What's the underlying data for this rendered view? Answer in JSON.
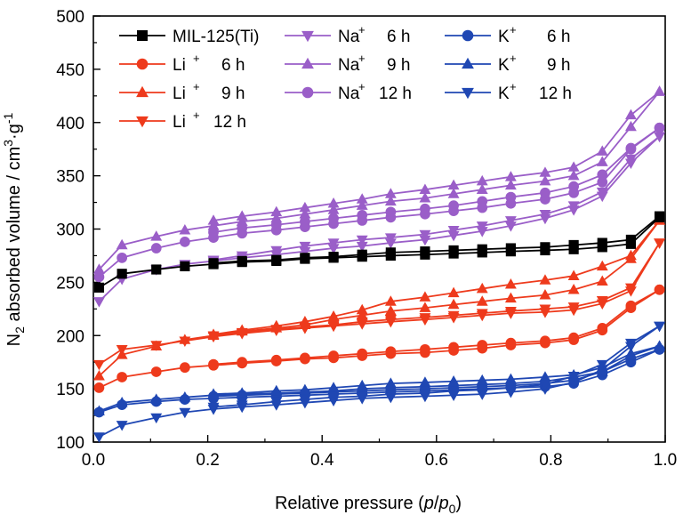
{
  "chart_data": {
    "type": "line",
    "xlabel": "Relative pressure (p/p0)",
    "xlabel_parts": {
      "prefix": "Relative pressure (",
      "p": "p",
      "slash": "/",
      "p0": "p",
      "sub": "0",
      "suffix": ")"
    },
    "ylabel": "N2 absorbed volume / cm3·g-1",
    "ylabel_parts": {
      "n": "N",
      "n_sub": "2",
      "mid": " absorbed volume / cm",
      "exp3": "3",
      "dot": "·g",
      "exp": "-1"
    },
    "xlim": [
      0,
      1.0
    ],
    "ylim": [
      100,
      500
    ],
    "xticks": [
      "0.0",
      "0.2",
      "0.4",
      "0.6",
      "0.8",
      "1.0"
    ],
    "yticks": [
      "100",
      "150",
      "200",
      "250",
      "300",
      "350",
      "400",
      "450",
      "500"
    ],
    "grid": false,
    "legend_position": "top",
    "colors": {
      "black": "#000000",
      "red": "#ee3a1c",
      "purple": "#9a5ec8",
      "blue": "#1f47b3"
    },
    "x": [
      0.01,
      0.05,
      0.11,
      0.16,
      0.21,
      0.26,
      0.32,
      0.37,
      0.42,
      0.47,
      0.52,
      0.58,
      0.63,
      0.68,
      0.73,
      0.79,
      0.84,
      0.89,
      0.94,
      0.99
    ],
    "series": [
      {
        "name": "MIL-125(Ti)",
        "ion": "",
        "time": "",
        "color": "#000000",
        "marker": "square",
        "adsorption": [
          245,
          258,
          262,
          265,
          267,
          269,
          270,
          272,
          273,
          274,
          275,
          276,
          277,
          278,
          279,
          280,
          281,
          283,
          286,
          311
        ],
        "desorption": [
          null,
          null,
          null,
          null,
          268,
          270,
          271,
          273,
          274,
          276,
          278,
          279,
          280,
          281,
          282,
          283,
          285,
          287,
          290,
          312
        ]
      },
      {
        "name": "Li+ 6 h",
        "ion": "Li",
        "time": "6 h",
        "color": "#ee3a1c",
        "marker": "circle",
        "adsorption": [
          151,
          161,
          166,
          170,
          172,
          174,
          176,
          178,
          179,
          181,
          183,
          184,
          186,
          188,
          191,
          193,
          196,
          205,
          226,
          243
        ],
        "desorption": [
          null,
          null,
          null,
          null,
          173,
          175,
          177,
          179,
          181,
          183,
          185,
          187,
          189,
          191,
          193,
          195,
          198,
          207,
          228,
          243
        ]
      },
      {
        "name": "Li+ 9 h",
        "ion": "Li",
        "time": "9 h",
        "color": "#ee3a1c",
        "marker": "triangle-up",
        "adsorption": [
          162,
          182,
          190,
          196,
          200,
          204,
          207,
          210,
          215,
          219,
          223,
          226,
          229,
          232,
          235,
          238,
          243,
          251,
          272,
          308
        ],
        "desorption": [
          null,
          null,
          null,
          null,
          201,
          205,
          209,
          213,
          218,
          224,
          232,
          236,
          240,
          244,
          248,
          252,
          256,
          265,
          275,
          308
        ]
      },
      {
        "name": "Li+ 12 h",
        "ion": "Li",
        "time": "12 h",
        "color": "#ee3a1c",
        "marker": "triangle-down",
        "adsorption": [
          173,
          187,
          191,
          195,
          199,
          202,
          205,
          207,
          209,
          211,
          213,
          215,
          217,
          219,
          221,
          222,
          224,
          230,
          242,
          287
        ],
        "desorption": [
          null,
          null,
          null,
          null,
          200,
          203,
          206,
          208,
          210,
          213,
          215,
          217,
          219,
          221,
          223,
          225,
          227,
          233,
          245,
          287
        ]
      },
      {
        "name": "Na+ 6 h",
        "ion": "Na",
        "time": "6 h",
        "color": "#9a5ec8",
        "marker": "triangle-down",
        "adsorption": [
          232,
          253,
          262,
          267,
          270,
          273,
          276,
          279,
          282,
          284,
          287,
          290,
          294,
          298,
          303,
          310,
          318,
          331,
          362,
          387
        ],
        "desorption": [
          null,
          null,
          null,
          null,
          271,
          275,
          280,
          284,
          287,
          290,
          292,
          295,
          299,
          303,
          308,
          314,
          322,
          335,
          366,
          387
        ]
      },
      {
        "name": "Na+ 9 h",
        "ion": "Na",
        "time": "9 h",
        "color": "#9a5ec8",
        "marker": "triangle-up",
        "adsorption": [
          262,
          285,
          293,
          299,
          303,
          307,
          310,
          314,
          318,
          322,
          326,
          329,
          333,
          337,
          341,
          345,
          350,
          363,
          396,
          429
        ],
        "desorption": [
          null,
          null,
          null,
          null,
          308,
          312,
          316,
          320,
          324,
          328,
          333,
          337,
          341,
          345,
          349,
          353,
          358,
          373,
          407,
          429
        ]
      },
      {
        "name": "Na+ 12 h",
        "ion": "Na",
        "time": "12 h",
        "color": "#9a5ec8",
        "marker": "circle",
        "adsorption": [
          255,
          273,
          282,
          288,
          292,
          296,
          299,
          302,
          305,
          308,
          311,
          314,
          317,
          320,
          324,
          328,
          334,
          344,
          375,
          395
        ],
        "desorption": [
          null,
          null,
          null,
          null,
          297,
          301,
          304,
          307,
          310,
          313,
          316,
          319,
          322,
          326,
          330,
          334,
          340,
          351,
          376,
          395
        ]
      },
      {
        "name": "K+ 6 h",
        "ion": "K",
        "time": "6 h",
        "color": "#1f47b3",
        "marker": "circle",
        "adsorption": [
          128,
          135,
          138,
          140,
          141,
          142,
          143,
          144,
          145,
          146,
          147,
          148,
          149,
          150,
          151,
          152,
          155,
          163,
          175,
          187
        ],
        "desorption": [
          null,
          null,
          null,
          null,
          143,
          144,
          145,
          146,
          147,
          148,
          149,
          150,
          151,
          152,
          153,
          155,
          158,
          166,
          178,
          187
        ]
      },
      {
        "name": "K+ 9 h",
        "ion": "K",
        "time": "9 h",
        "color": "#1f47b3",
        "marker": "triangle-up",
        "adsorption": [
          129,
          137,
          140,
          142,
          144,
          145,
          146,
          147,
          148,
          150,
          151,
          152,
          153,
          154,
          155,
          157,
          161,
          166,
          181,
          190
        ],
        "desorption": [
          null,
          null,
          null,
          null,
          145,
          146,
          148,
          149,
          151,
          153,
          155,
          156,
          157,
          158,
          159,
          161,
          163,
          170,
          183,
          190
        ]
      },
      {
        "name": "K+ 12 h",
        "ion": "K",
        "time": "12 h",
        "color": "#1f47b3",
        "marker": "triangle-down",
        "adsorption": [
          105,
          116,
          123,
          128,
          131,
          133,
          135,
          137,
          139,
          141,
          142,
          143,
          144,
          145,
          147,
          150,
          156,
          168,
          190,
          209
        ],
        "desorption": [
          null,
          null,
          null,
          null,
          133,
          135,
          138,
          140,
          142,
          143,
          145,
          146,
          148,
          149,
          151,
          154,
          162,
          173,
          193,
          209
        ]
      }
    ]
  }
}
